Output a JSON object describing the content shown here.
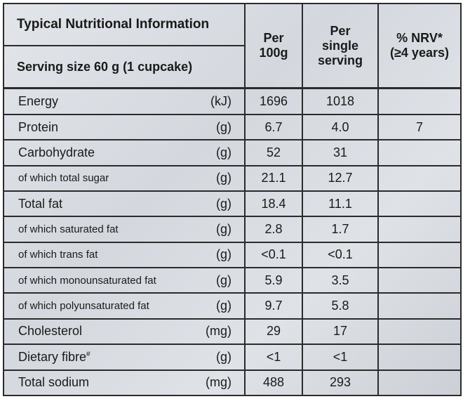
{
  "header": {
    "title": "Typical Nutritional Information",
    "serving": "Serving size 60 g (1 cupcake)",
    "col_per100": "Per\n100g",
    "col_per100_a": "Per",
    "col_per100_b": "100g",
    "col_serving_a": "Per",
    "col_serving_b": "single",
    "col_serving_c": "serving",
    "col_nrv_a": "% NRV*",
    "col_nrv_b": "(≥4 years)"
  },
  "rows": [
    {
      "name": "Energy",
      "unit": "(kJ)",
      "per100": "1696",
      "serving": "1018",
      "nrv": ""
    },
    {
      "name": "Protein",
      "unit": "(g)",
      "per100": "6.7",
      "serving": "4.0",
      "nrv": "7"
    },
    {
      "name": "Carbohydrate",
      "unit": "(g)",
      "per100": "52",
      "serving": "31",
      "nrv": ""
    },
    {
      "name": "of which total sugar",
      "unit": "(g)",
      "per100": "21.1",
      "serving": "12.7",
      "nrv": ""
    },
    {
      "name": "Total fat",
      "unit": "(g)",
      "per100": "18.4",
      "serving": "11.1",
      "nrv": ""
    },
    {
      "name": "of which saturated fat",
      "unit": "(g)",
      "per100": "2.8",
      "serving": "1.7",
      "nrv": ""
    },
    {
      "name": "of which trans fat",
      "unit": "(g)",
      "per100": "<0.1",
      "serving": "<0.1",
      "nrv": ""
    },
    {
      "name": "of which monounsaturated fat",
      "unit": "(g)",
      "per100": "5.9",
      "serving": "3.5",
      "nrv": ""
    },
    {
      "name": "of which polyunsaturated fat",
      "unit": "(g)",
      "per100": "9.7",
      "serving": "5.8",
      "nrv": ""
    },
    {
      "name": "Cholesterol",
      "unit": "(mg)",
      "per100": "29",
      "serving": "17",
      "nrv": ""
    },
    {
      "name": "Dietary fibre",
      "name_sup": "#",
      "unit": "(g)",
      "per100": "<1",
      "serving": "<1",
      "nrv": ""
    },
    {
      "name": "Total sodium",
      "unit": "(mg)",
      "per100": "488",
      "serving": "293",
      "nrv": ""
    }
  ]
}
